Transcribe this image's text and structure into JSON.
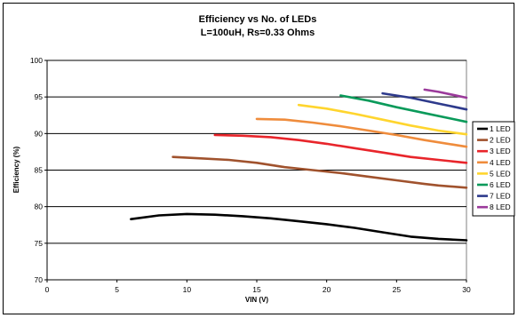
{
  "chart_data": {
    "type": "line",
    "title": "Efficiency vs No. of LEDs",
    "subtitle": "L=100uH, Rs=0.33 Ohms",
    "xlabel": "VIN (V)",
    "ylabel": "Efficiency (%)",
    "xlim": [
      0,
      30
    ],
    "ylim": [
      70,
      100
    ],
    "x_ticks": [
      "0",
      "5",
      "10",
      "15",
      "20",
      "25",
      "30"
    ],
    "y_ticks": [
      "70",
      "75",
      "80",
      "85",
      "90",
      "95",
      "100"
    ],
    "grid": "horizontal",
    "legend_position": "right",
    "series": [
      {
        "name": "1 LED",
        "color": "#000000",
        "x": [
          6,
          8,
          10,
          12,
          14,
          16,
          18,
          20,
          22,
          24,
          26,
          28,
          30
        ],
        "y": [
          78.3,
          78.8,
          79.0,
          78.9,
          78.7,
          78.4,
          78.0,
          77.6,
          77.1,
          76.5,
          75.9,
          75.6,
          75.4
        ]
      },
      {
        "name": "2 LED",
        "color": "#a0522d",
        "x": [
          9,
          11,
          13,
          15,
          17,
          19,
          21,
          23,
          25,
          27,
          28,
          30
        ],
        "y": [
          86.8,
          86.6,
          86.4,
          86.0,
          85.4,
          85.0,
          84.6,
          84.1,
          83.6,
          83.1,
          82.9,
          82.6
        ]
      },
      {
        "name": "3 LED",
        "color": "#e8252b",
        "x": [
          12,
          14,
          16,
          18,
          20,
          22,
          24,
          26,
          28,
          30
        ],
        "y": [
          89.8,
          89.7,
          89.5,
          89.1,
          88.6,
          88.0,
          87.4,
          86.8,
          86.4,
          86.0
        ]
      },
      {
        "name": "4 LED",
        "color": "#ef8c3c",
        "x": [
          15,
          17,
          19,
          21,
          23,
          25,
          27,
          29,
          30
        ],
        "y": [
          92.0,
          91.9,
          91.5,
          91.0,
          90.4,
          89.8,
          89.1,
          88.5,
          88.2
        ]
      },
      {
        "name": "5 LED",
        "color": "#ffd52e",
        "x": [
          18,
          20,
          22,
          24,
          26,
          28,
          30
        ],
        "y": [
          93.9,
          93.4,
          92.7,
          91.9,
          91.1,
          90.4,
          89.9
        ]
      },
      {
        "name": "6 LED",
        "color": "#0a9a5a",
        "x": [
          21,
          23,
          25,
          27,
          29,
          30
        ],
        "y": [
          95.2,
          94.5,
          93.6,
          92.8,
          92.0,
          91.6
        ]
      },
      {
        "name": "7 LED",
        "color": "#2e3a8c",
        "x": [
          24,
          26,
          28,
          30
        ],
        "y": [
          95.5,
          94.9,
          94.1,
          93.3
        ]
      },
      {
        "name": "8 LED",
        "color": "#9b3a9b",
        "x": [
          27,
          28,
          29,
          30
        ],
        "y": [
          96.0,
          95.7,
          95.3,
          94.9
        ]
      }
    ]
  }
}
